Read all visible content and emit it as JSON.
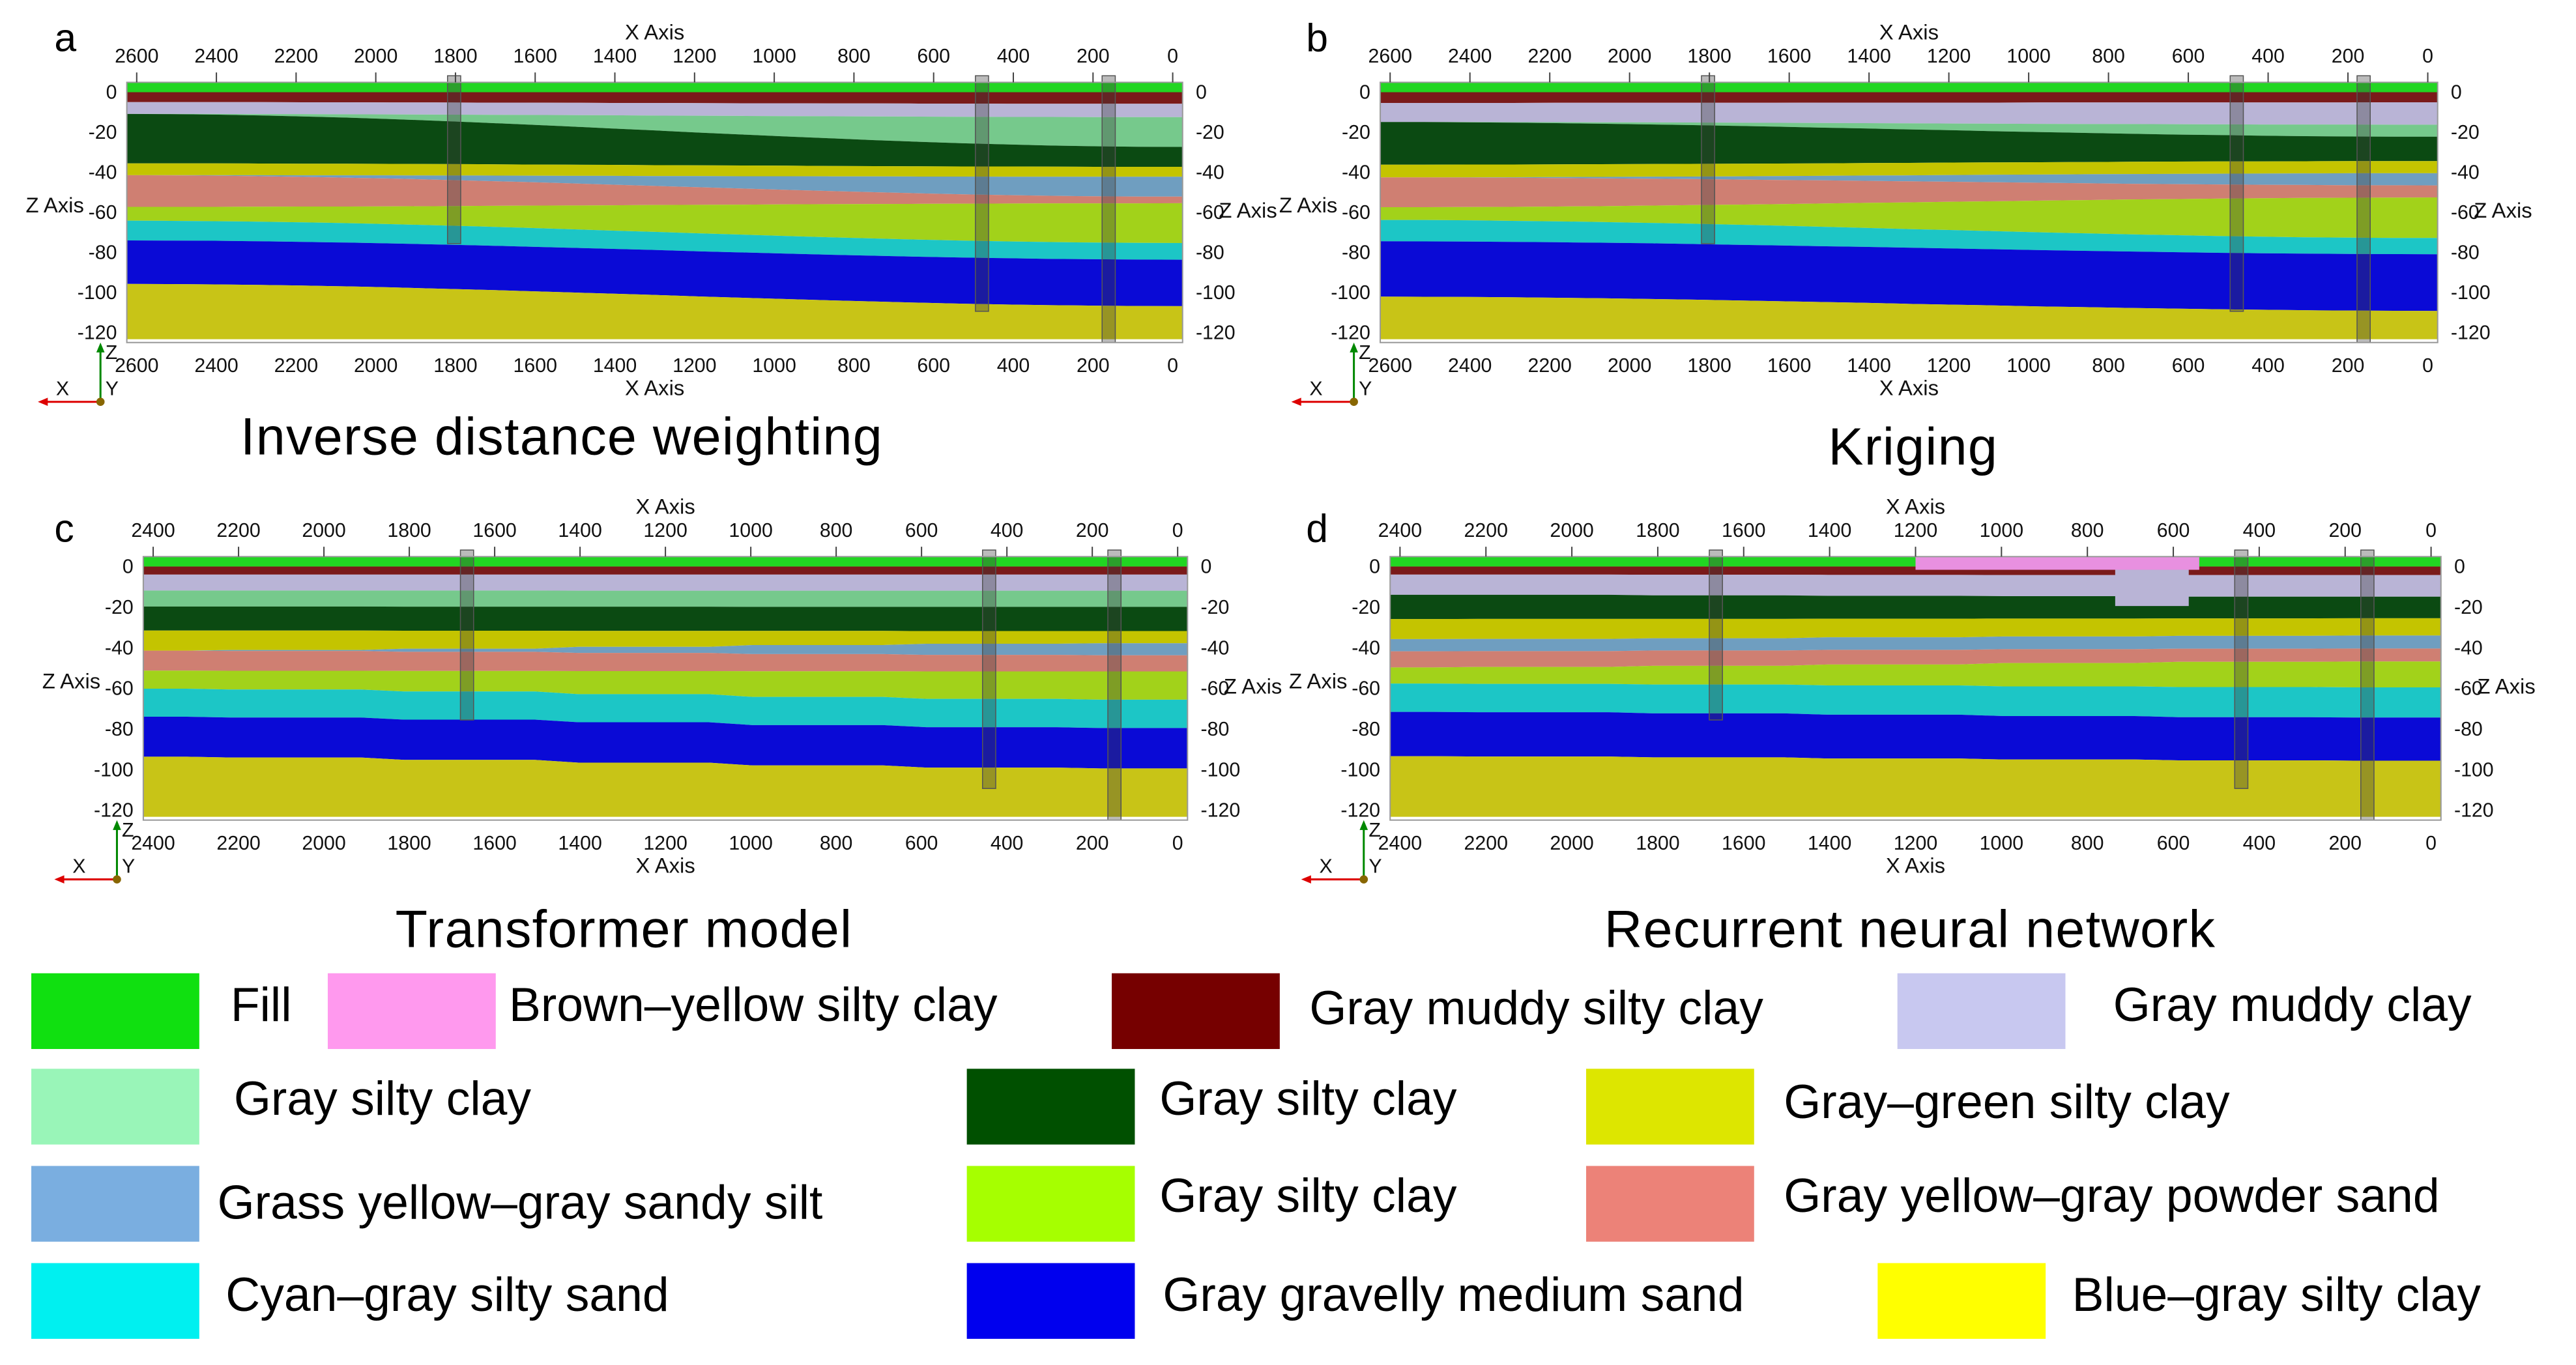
{
  "panels": [
    {
      "id": "a",
      "label": "a",
      "caption": "Inverse distance weighting",
      "axis_title": "X Axis",
      "z_axis_title": "Z Axis",
      "x_ticks": [
        "2600",
        "2400",
        "2200",
        "2000",
        "1800",
        "1600",
        "1400",
        "1200",
        "1000",
        "800",
        "600",
        "400",
        "200",
        "0"
      ],
      "z_ticks": [
        "0",
        "-20",
        "-40",
        "-60",
        "-80",
        "-100",
        "-120"
      ],
      "orientation": {
        "h": "X",
        "v": "Z",
        "o": "Y"
      }
    },
    {
      "id": "b",
      "label": "b",
      "caption": "Kriging",
      "axis_title": "X Axis",
      "z_axis_title": "Z Axis",
      "x_ticks": [
        "2600",
        "2400",
        "2200",
        "2000",
        "1800",
        "1600",
        "1400",
        "1200",
        "1000",
        "800",
        "600",
        "400",
        "200",
        "0"
      ],
      "z_ticks": [
        "0",
        "-20",
        "-40",
        "-60",
        "-80",
        "-100",
        "-120"
      ],
      "orientation": {
        "h": "X",
        "v": "Z",
        "o": "Y"
      }
    },
    {
      "id": "c",
      "label": "c",
      "caption": "Transformer model",
      "axis_title": "X Axis",
      "z_axis_title": "Z Axis",
      "x_ticks": [
        "2400",
        "2200",
        "2000",
        "1800",
        "1600",
        "1400",
        "1200",
        "1000",
        "800",
        "600",
        "400",
        "200",
        "0"
      ],
      "z_ticks": [
        "0",
        "-20",
        "-40",
        "-60",
        "-80",
        "-100",
        "-120"
      ],
      "orientation": {
        "h": "X",
        "v": "Z",
        "o": "Y"
      }
    },
    {
      "id": "d",
      "label": "d",
      "caption": "Recurrent neural network",
      "axis_title": "X Axis",
      "z_axis_title": "Z Axis",
      "x_ticks": [
        "2400",
        "2200",
        "2000",
        "1800",
        "1600",
        "1400",
        "1200",
        "1000",
        "800",
        "600",
        "400",
        "200",
        "0"
      ],
      "z_ticks": [
        "0",
        "-20",
        "-40",
        "-60",
        "-80",
        "-100",
        "-120"
      ],
      "orientation": {
        "h": "X",
        "v": "Z",
        "o": "Y"
      }
    }
  ],
  "legend": [
    {
      "label": "Fill",
      "color": "#10e010"
    },
    {
      "label": "Brown–yellow silty clay",
      "color": "#ff99ee"
    },
    {
      "label": "Gray muddy silty clay",
      "color": "#760000"
    },
    {
      "label": "Gray muddy clay",
      "color": "#c8c8f0"
    },
    {
      "label": "Gray silty clay",
      "color": "#99f5b8"
    },
    {
      "label": "Gray silty clay",
      "color": "#005000"
    },
    {
      "label": "Gray–green silty clay",
      "color": "#dde600"
    },
    {
      "label": "Grass yellow–gray sandy silt",
      "color": "#7aaee0"
    },
    {
      "label": "Gray silty clay",
      "color": "#a6ff00"
    },
    {
      "label": "Gray yellow–gray powder sand",
      "color": "#ec8278"
    },
    {
      "label": "Cyan–gray silty sand",
      "color": "#00f0f0"
    },
    {
      "label": "Gray gravelly medium sand",
      "color": "#0000ee"
    },
    {
      "label": "Blue–gray silty clay",
      "color": "#ffff00"
    }
  ],
  "render_colors": {
    "fill": "#22d622",
    "gray_muddy_silty_clay": "#7a1a1a",
    "gray_muddy_clay": "#b9b4d6",
    "gray_silty_clay_light": "#76c98c",
    "gray_silty_clay_dark": "#0b4a12",
    "gray_green_silty_clay": "#c4c400",
    "grass_yellow_gray_sandy_silt": "#6f9ec0",
    "gray_silty_clay_lime": "#a2d21a",
    "powder_sand": "#cf7f72",
    "cyan_sand": "#1cc6c6",
    "medium_sand": "#0a0ad6",
    "bottom_clay": "#c8c417"
  }
}
